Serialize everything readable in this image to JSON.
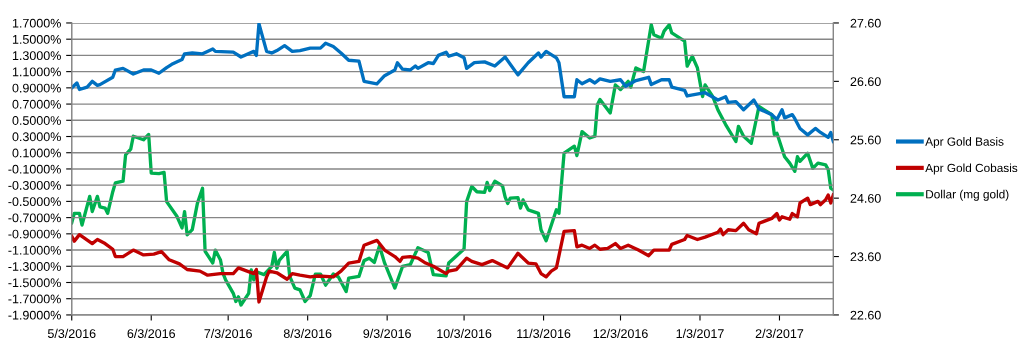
{
  "chart_data": {
    "type": "line",
    "xlim": [
      "2016-05-03",
      "2017-02-24"
    ],
    "xticks": [
      {
        "value": "2016-05-03",
        "label": "5/3/2016"
      },
      {
        "value": "2016-06-03",
        "label": "6/3/2016"
      },
      {
        "value": "2016-07-03",
        "label": "7/3/2016"
      },
      {
        "value": "2016-08-03",
        "label": "8/3/2016"
      },
      {
        "value": "2016-09-03",
        "label": "9/3/2016"
      },
      {
        "value": "2016-10-03",
        "label": "10/3/2016"
      },
      {
        "value": "2016-11-03",
        "label": "11/3/2016"
      },
      {
        "value": "2016-12-03",
        "label": "12/3/2016"
      },
      {
        "value": "2017-01-03",
        "label": "1/3/2017"
      },
      {
        "value": "2017-02-03",
        "label": "2/3/2017"
      }
    ],
    "ylim": [
      -1.9,
      1.7
    ],
    "yticks": [
      {
        "value": 1.7,
        "label": "1.7000%"
      },
      {
        "value": 1.5,
        "label": "1.5000%"
      },
      {
        "value": 1.3,
        "label": "1.3000%"
      },
      {
        "value": 1.1,
        "label": "1.1000%"
      },
      {
        "value": 0.9,
        "label": "0.9000%"
      },
      {
        "value": 0.7,
        "label": "0.7000%"
      },
      {
        "value": 0.5,
        "label": "0.5000%"
      },
      {
        "value": 0.3,
        "label": "0.3000%"
      },
      {
        "value": 0.1,
        "label": "0.1000%"
      },
      {
        "value": -0.1,
        "label": "-0.1000%"
      },
      {
        "value": -0.3,
        "label": "-0.3000%"
      },
      {
        "value": -0.5,
        "label": "-0.5000%"
      },
      {
        "value": -0.7,
        "label": "-0.7000%"
      },
      {
        "value": -0.9,
        "label": "-0.9000%"
      },
      {
        "value": -1.1,
        "label": "-1.1000%"
      },
      {
        "value": -1.3,
        "label": "-1.3000%"
      },
      {
        "value": -1.5,
        "label": "-1.5000%"
      },
      {
        "value": -1.7,
        "label": "-1.7000%"
      },
      {
        "value": -1.9,
        "label": "-1.9000%"
      }
    ],
    "y2lim": [
      22.6,
      27.6
    ],
    "y2ticks": [
      {
        "value": 22.6,
        "label": "22.60"
      },
      {
        "value": 23.6,
        "label": "23.60"
      },
      {
        "value": 24.6,
        "label": "24.60"
      },
      {
        "value": 25.6,
        "label": "25.60"
      },
      {
        "value": 26.6,
        "label": "26.60"
      },
      {
        "value": 27.6,
        "label": "27.60"
      }
    ],
    "grid": "y",
    "legend": "right",
    "marker": "none",
    "line_style": "solid",
    "series": [
      {
        "name": "Apr Gold Basis",
        "color": "#0070c0",
        "x": [
          "2016-05-03",
          "2016-05-05",
          "2016-05-06",
          "2016-05-09",
          "2016-05-11",
          "2016-05-13",
          "2016-05-14",
          "2016-05-19",
          "2016-05-20",
          "2016-05-23",
          "2016-05-27",
          "2016-05-31",
          "2016-06-03",
          "2016-06-06",
          "2016-06-09",
          "2016-06-11",
          "2016-06-15",
          "2016-06-16",
          "2016-06-19",
          "2016-06-23",
          "2016-06-27",
          "2016-06-28",
          "2016-07-05",
          "2016-07-08",
          "2016-07-13",
          "2016-07-14",
          "2016-07-15",
          "2016-07-18",
          "2016-07-20",
          "2016-07-22",
          "2016-07-25",
          "2016-07-28",
          "2016-07-31",
          "2016-08-04",
          "2016-08-08",
          "2016-08-10",
          "2016-08-13",
          "2016-08-16",
          "2016-08-19",
          "2016-08-23",
          "2016-08-25",
          "2016-08-30",
          "2016-09-02",
          "2016-09-06",
          "2016-09-07",
          "2016-09-09",
          "2016-09-12",
          "2016-09-14",
          "2016-09-15",
          "2016-09-19",
          "2016-09-21",
          "2016-09-23",
          "2016-09-26",
          "2016-09-27",
          "2016-09-30",
          "2016-10-03",
          "2016-10-04",
          "2016-10-07",
          "2016-10-11",
          "2016-10-15",
          "2016-10-19",
          "2016-10-24",
          "2016-10-28",
          "2016-11-01",
          "2016-11-02",
          "2016-11-04",
          "2016-11-08",
          "2016-11-09",
          "2016-11-11",
          "2016-11-15",
          "2016-11-16",
          "2016-11-18",
          "2016-11-21",
          "2016-11-23",
          "2016-11-25",
          "2016-11-29",
          "2016-12-03",
          "2016-12-05",
          "2016-12-09",
          "2016-12-14",
          "2016-12-15",
          "2016-12-19",
          "2016-12-22",
          "2016-12-23",
          "2016-12-28",
          "2016-12-29",
          "2017-01-05",
          "2017-01-10",
          "2017-01-13",
          "2017-01-14",
          "2017-01-17",
          "2017-01-20",
          "2017-01-24",
          "2017-01-26",
          "2017-01-31",
          "2017-02-02",
          "2017-02-04",
          "2017-02-05",
          "2017-02-08",
          "2017-02-09",
          "2017-02-11",
          "2017-02-14",
          "2017-02-17",
          "2017-02-19",
          "2017-02-22",
          "2017-02-23",
          "2017-02-24"
        ],
        "values": [
          0.9,
          0.96,
          0.88,
          0.91,
          0.98,
          0.93,
          0.94,
          1.03,
          1.12,
          1.14,
          1.07,
          1.12,
          1.12,
          1.08,
          1.15,
          1.19,
          1.25,
          1.32,
          1.33,
          1.32,
          1.38,
          1.35,
          1.34,
          1.28,
          1.35,
          1.3,
          1.69,
          1.35,
          1.33,
          1.36,
          1.42,
          1.35,
          1.36,
          1.39,
          1.39,
          1.45,
          1.41,
          1.33,
          1.24,
          1.23,
          0.98,
          0.95,
          1.05,
          1.12,
          1.21,
          1.13,
          1.12,
          1.17,
          1.14,
          1.21,
          1.2,
          1.3,
          1.34,
          1.29,
          1.32,
          1.27,
          1.14,
          1.21,
          1.22,
          1.17,
          1.28,
          1.06,
          1.21,
          1.33,
          1.28,
          1.35,
          1.27,
          1.21,
          0.79,
          0.79,
          1.0,
          0.95,
          1.0,
          0.96,
          1.01,
          0.98,
          1.0,
          0.92,
          0.99,
          1.03,
          0.94,
          1.0,
          1.0,
          0.91,
          0.87,
          0.8,
          0.84,
          0.75,
          0.79,
          0.72,
          0.73,
          0.63,
          0.75,
          0.64,
          0.57,
          0.51,
          0.63,
          0.53,
          0.57,
          0.52,
          0.4,
          0.32,
          0.4,
          0.35,
          0.29,
          0.35,
          0.24
        ]
      },
      {
        "name": "Apr Gold Cobasis",
        "color": "#c00000",
        "x": [
          "2016-05-03",
          "2016-05-04",
          "2016-05-06",
          "2016-05-11",
          "2016-05-13",
          "2016-05-16",
          "2016-05-19",
          "2016-05-20",
          "2016-05-23",
          "2016-05-27",
          "2016-05-31",
          "2016-06-04",
          "2016-06-07",
          "2016-06-10",
          "2016-06-14",
          "2016-06-17",
          "2016-06-22",
          "2016-06-25",
          "2016-06-30",
          "2016-07-05",
          "2016-07-07",
          "2016-07-13",
          "2016-07-14",
          "2016-07-15",
          "2016-07-18",
          "2016-07-19",
          "2016-07-22",
          "2016-07-26",
          "2016-07-28",
          "2016-07-31",
          "2016-08-04",
          "2016-08-07",
          "2016-08-13",
          "2016-08-16",
          "2016-08-19",
          "2016-08-23",
          "2016-08-25",
          "2016-08-30",
          "2016-09-02",
          "2016-09-06",
          "2016-09-08",
          "2016-09-09",
          "2016-09-12",
          "2016-09-15",
          "2016-09-18",
          "2016-09-21",
          "2016-09-26",
          "2016-09-27",
          "2016-09-30",
          "2016-10-04",
          "2016-10-06",
          "2016-10-10",
          "2016-10-14",
          "2016-10-20",
          "2016-10-24",
          "2016-10-28",
          "2016-10-31",
          "2016-11-02",
          "2016-11-04",
          "2016-11-06",
          "2016-11-08",
          "2016-11-11",
          "2016-11-15",
          "2016-11-16",
          "2016-11-18",
          "2016-11-21",
          "2016-11-23",
          "2016-11-25",
          "2016-11-28",
          "2016-12-01",
          "2016-12-03",
          "2016-12-06",
          "2016-12-10",
          "2016-12-14",
          "2016-12-16",
          "2016-12-19",
          "2016-12-22",
          "2016-12-23",
          "2016-12-28",
          "2016-12-29",
          "2017-01-02",
          "2017-01-05",
          "2017-01-10",
          "2017-01-11",
          "2017-01-12",
          "2017-01-14",
          "2017-01-17",
          "2017-01-20",
          "2017-01-22",
          "2017-01-25",
          "2017-01-26",
          "2017-01-31",
          "2017-02-02",
          "2017-02-03",
          "2017-02-04",
          "2017-02-07",
          "2017-02-08",
          "2017-02-10",
          "2017-02-11",
          "2017-02-14",
          "2017-02-15",
          "2017-02-18",
          "2017-02-19",
          "2017-02-21",
          "2017-02-22",
          "2017-02-23",
          "2017-02-24"
        ],
        "values": [
          -0.93,
          -0.99,
          -0.91,
          -1.02,
          -0.97,
          -1.02,
          -1.09,
          -1.18,
          -1.18,
          -1.1,
          -1.16,
          -1.15,
          -1.12,
          -1.22,
          -1.27,
          -1.34,
          -1.36,
          -1.41,
          -1.39,
          -1.39,
          -1.32,
          -1.39,
          -1.34,
          -1.74,
          -1.43,
          -1.36,
          -1.38,
          -1.46,
          -1.39,
          -1.41,
          -1.43,
          -1.42,
          -1.43,
          -1.36,
          -1.26,
          -1.24,
          -1.04,
          -0.98,
          -1.1,
          -1.18,
          -1.24,
          -1.19,
          -1.18,
          -1.2,
          -1.26,
          -1.3,
          -1.39,
          -1.36,
          -1.34,
          -1.2,
          -1.24,
          -1.28,
          -1.23,
          -1.32,
          -1.14,
          -1.26,
          -1.27,
          -1.39,
          -1.43,
          -1.36,
          -1.32,
          -0.87,
          -0.86,
          -1.06,
          -1.04,
          -1.08,
          -1.04,
          -1.09,
          -1.08,
          -1.02,
          -1.08,
          -1.04,
          -1.1,
          -1.17,
          -1.1,
          -1.1,
          -1.1,
          -1.03,
          -0.97,
          -0.92,
          -0.97,
          -0.94,
          -0.88,
          -0.84,
          -0.91,
          -0.85,
          -0.86,
          -0.77,
          -0.85,
          -0.9,
          -0.77,
          -0.71,
          -0.65,
          -0.73,
          -0.69,
          -0.72,
          -0.65,
          -0.69,
          -0.52,
          -0.46,
          -0.54,
          -0.5,
          -0.54,
          -0.48,
          -0.42,
          -0.52,
          -0.42
        ]
      },
      {
        "name": "Dollar (mg gold)",
        "color": "#00b050",
        "axis": "y2",
        "x": [
          "2016-05-03",
          "2016-05-04",
          "2016-05-06",
          "2016-05-07",
          "2016-05-10",
          "2016-05-11",
          "2016-05-13",
          "2016-05-14",
          "2016-05-16",
          "2016-05-17",
          "2016-05-19",
          "2016-05-20",
          "2016-05-23",
          "2016-05-24",
          "2016-05-26",
          "2016-05-27",
          "2016-05-31",
          "2016-06-02",
          "2016-06-03",
          "2016-06-06",
          "2016-06-08",
          "2016-06-09",
          "2016-06-13",
          "2016-06-15",
          "2016-06-16",
          "2016-06-17",
          "2016-06-19",
          "2016-06-21",
          "2016-06-23",
          "2016-06-24",
          "2016-06-27",
          "2016-06-28",
          "2016-06-30",
          "2016-07-01",
          "2016-07-02",
          "2016-07-05",
          "2016-07-06",
          "2016-07-07",
          "2016-07-08",
          "2016-07-11",
          "2016-07-12",
          "2016-07-13",
          "2016-07-14",
          "2016-07-17",
          "2016-07-20",
          "2016-07-21",
          "2016-07-22",
          "2016-07-23",
          "2016-07-26",
          "2016-07-27",
          "2016-07-29",
          "2016-07-31",
          "2016-08-02",
          "2016-08-04",
          "2016-08-06",
          "2016-08-08",
          "2016-08-10",
          "2016-08-13",
          "2016-08-15",
          "2016-08-18",
          "2016-08-19",
          "2016-08-23",
          "2016-08-25",
          "2016-08-27",
          "2016-08-29",
          "2016-08-31",
          "2016-09-02",
          "2016-09-06",
          "2016-09-09",
          "2016-09-12",
          "2016-09-15",
          "2016-09-19",
          "2016-09-21",
          "2016-09-26",
          "2016-09-27",
          "2016-09-30",
          "2016-10-03",
          "2016-10-04",
          "2016-10-06",
          "2016-10-08",
          "2016-10-11",
          "2016-10-12",
          "2016-10-13",
          "2016-10-15",
          "2016-10-18",
          "2016-10-19",
          "2016-10-20",
          "2016-10-21",
          "2016-10-24",
          "2016-10-25",
          "2016-10-26",
          "2016-10-28",
          "2016-11-01",
          "2016-11-02",
          "2016-11-04",
          "2016-11-08",
          "2016-11-09",
          "2016-11-11",
          "2016-11-15",
          "2016-11-16",
          "2016-11-18",
          "2016-11-21",
          "2016-11-23",
          "2016-11-24",
          "2016-11-25",
          "2016-11-29",
          "2016-12-01",
          "2016-12-03",
          "2016-12-06",
          "2016-12-07",
          "2016-12-09",
          "2016-12-12",
          "2016-12-15",
          "2016-12-16",
          "2016-12-19",
          "2016-12-20",
          "2016-12-22",
          "2016-12-23",
          "2016-12-28",
          "2016-12-29",
          "2016-12-31",
          "2017-01-02",
          "2017-01-04",
          "2017-01-05",
          "2017-01-08",
          "2017-01-10",
          "2017-01-13",
          "2017-01-17",
          "2017-01-18",
          "2017-01-20",
          "2017-01-23",
          "2017-01-26",
          "2017-01-31",
          "2017-02-01",
          "2017-02-02",
          "2017-02-05",
          "2017-02-07",
          "2017-02-09",
          "2017-02-10",
          "2017-02-11",
          "2017-02-14",
          "2017-02-16",
          "2017-02-18",
          "2017-02-21",
          "2017-02-22",
          "2017-02-23",
          "2017-02-24"
        ],
        "values": [
          24.18,
          24.34,
          24.34,
          24.14,
          24.63,
          24.37,
          24.63,
          24.45,
          24.43,
          24.34,
          24.71,
          24.86,
          24.89,
          25.34,
          25.44,
          25.66,
          25.6,
          25.69,
          25.03,
          25.02,
          25.04,
          24.54,
          24.29,
          24.09,
          24.37,
          23.97,
          24.06,
          24.51,
          24.77,
          23.69,
          23.49,
          23.71,
          23.54,
          23.31,
          23.2,
          22.97,
          22.83,
          22.91,
          22.77,
          22.97,
          23.37,
          23.2,
          23.34,
          23.29,
          23.43,
          23.67,
          23.4,
          23.54,
          23.69,
          23.26,
          23.06,
          23.03,
          22.83,
          22.93,
          23.3,
          23.3,
          23.11,
          23.3,
          23.25,
          23.0,
          23.23,
          23.26,
          23.53,
          23.57,
          23.5,
          23.78,
          23.49,
          23.06,
          23.43,
          23.46,
          23.75,
          23.67,
          23.29,
          23.27,
          23.49,
          23.61,
          23.73,
          24.54,
          24.8,
          24.71,
          24.7,
          24.87,
          24.73,
          24.89,
          24.81,
          24.62,
          24.51,
          24.6,
          24.61,
          24.43,
          24.57,
          24.4,
          24.34,
          24.06,
          23.87,
          24.4,
          24.34,
          25.37,
          25.49,
          25.33,
          25.74,
          25.63,
          25.66,
          26.2,
          26.29,
          26.06,
          26.54,
          26.46,
          26.6,
          26.5,
          26.83,
          26.77,
          27.57,
          27.4,
          27.34,
          27.46,
          27.57,
          27.43,
          27.29,
          26.86,
          27.03,
          26.83,
          26.34,
          26.54,
          26.34,
          26.11,
          25.86,
          25.57,
          25.83,
          25.66,
          25.54,
          26.17,
          26.03,
          25.69,
          25.71,
          25.31,
          25.2,
          25.06,
          25.31,
          25.23,
          25.37,
          25.11,
          25.2,
          25.17,
          25.09,
          24.77,
          24.74
        ]
      }
    ]
  }
}
